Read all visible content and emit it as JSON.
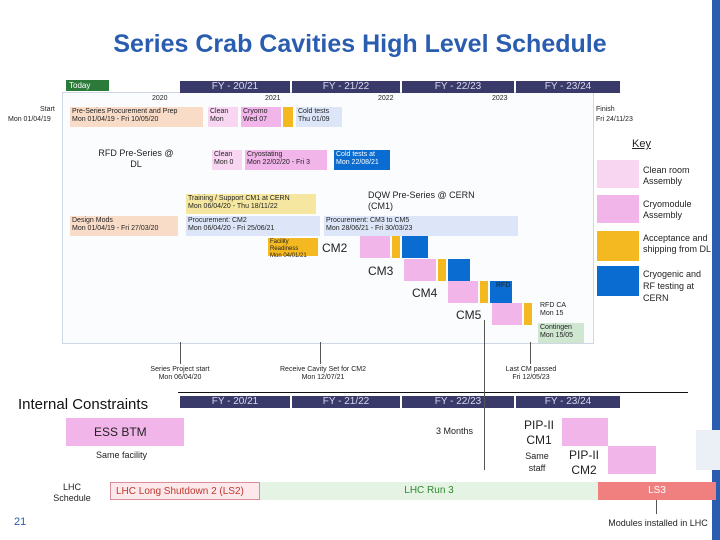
{
  "title": "Series Crab Cavities High Level Schedule",
  "fiscal_years": [
    "FY - 20/21",
    "FY - 21/22",
    "FY - 22/23",
    "FY - 23/24"
  ],
  "years": [
    "2020",
    "2021",
    "2022",
    "2023"
  ],
  "today": "Today",
  "gantt": {
    "start_label": "Start",
    "start_date": "Mon 01/04/19",
    "finish_label": "Finish",
    "finish_date": "Fri 24/11/23",
    "preseries_proc": "Pre-Series Procurement and Prep",
    "preseries_proc_dates": "Mon 01/04/19 - Fri 10/05/20",
    "clean": "Clean",
    "mon": "Mon",
    "cryo": "Cryomo",
    "wed": "Wed 07",
    "coldtests": "Cold tests",
    "thu": "Thu 01/09",
    "rfd_preseries": "RFD Pre-Series @ DL",
    "clean2": "Clean",
    "mon2": "Mon 0",
    "cryostating": "Cryostating",
    "cryostating_dates": "Mon 22/02/20 - Fri 3",
    "coldtests2": "Cold tests at",
    "coldtests2_date": "Mon 22/08/21",
    "dqw_preseries": "DQW Pre-Series @ CERN (CM1)",
    "training": "Training / Support CM1 at CERN",
    "training_dates": "Mon 06/04/20 - Thu 18/11/22",
    "design": "Design Mods",
    "design_dates": "Mon 01/04/19 - Fri 27/03/20",
    "proc_cm2": "Procurement: CM2",
    "proc_cm2_dates": "Mon 06/04/20 - Fri 25/06/21",
    "proc_cm3": "Procurement: CM3 to CM5",
    "proc_cm3_dates": "Mon 28/06/21 - Fri 30/03/23",
    "facility": "Facility Readiness",
    "facility_date": "Mon 04/01/21",
    "cm2": "CM2",
    "cm3": "CM3",
    "cm4": "CM4",
    "cm5": "CM5",
    "rfd": "RFD",
    "rfd_ca": "RFD CA",
    "rfd_mon": "Mon 15",
    "contin": "Contingen",
    "contin_date": "Mon 15/05",
    "series_proj": "Series Project start",
    "series_proj_date": "Mon 06/04/20",
    "receive": "Receive Cavity Set for CM2",
    "receive_date": "Mon 12/07/21",
    "lastcm": "Last CM passed",
    "lastcm_date": "Fri 12/05/23"
  },
  "key": {
    "title": "Key",
    "items": [
      {
        "label": "Clean room Assembly",
        "color": "#f8d6f2"
      },
      {
        "label": "Cryomodule Assembly",
        "color": "#f2b5ea"
      },
      {
        "label": "Acceptance and shipping from DL",
        "color": "#f4b820"
      },
      {
        "label": "Cryogenic and RF testing at CERN",
        "color": "#0a6bd0"
      }
    ]
  },
  "constraints": {
    "title": "Internal Constraints",
    "ess": "ESS BTM",
    "same_facility": "Same facility",
    "three_months": "3 Months",
    "pip_cm1": "PIP-II CM1",
    "same_staff": "Same staff",
    "pip_cm2": "PIP-II CM2"
  },
  "lhc": {
    "label": "LHC Schedule",
    "ls2": "LHC Long Shutdown 2 (LS2)",
    "run3": "LHC Run 3",
    "ls3": "LS3",
    "installed": "Modules installed in LHC"
  },
  "page_number": "21"
}
